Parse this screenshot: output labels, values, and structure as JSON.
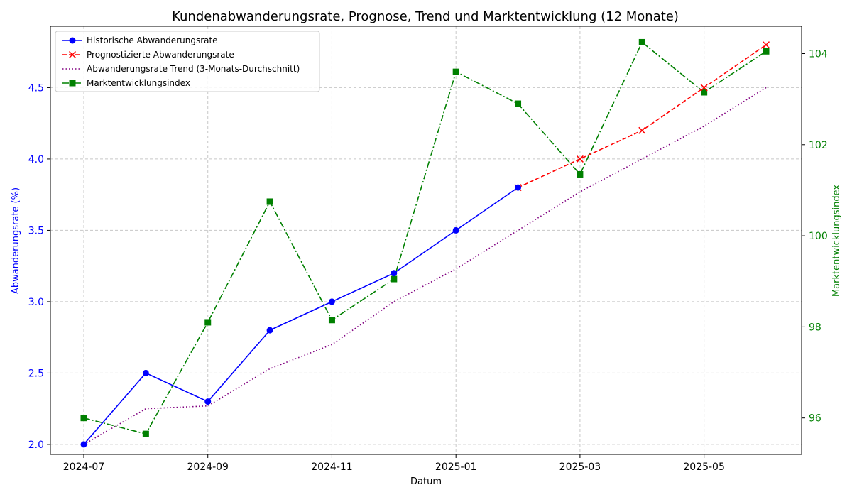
{
  "chart_data": {
    "type": "line",
    "title": "Kundenabwanderungsrate, Prognose, Trend und Marktentwicklung (12 Monate)",
    "xlabel": "Datum",
    "ylabel": "Abwanderungsrate (%)",
    "y2label": "Marktentwicklungsindex",
    "x_ticks": [
      "2024-07",
      "2024-09",
      "2024-11",
      "2025-01",
      "2025-03",
      "2025-05"
    ],
    "y_ticks": [
      "2.0",
      "2.5",
      "3.0",
      "3.5",
      "4.0",
      "4.5"
    ],
    "y2_ticks": [
      "96",
      "98",
      "100",
      "102",
      "104"
    ],
    "ylim": [
      1.93,
      4.93
    ],
    "y2lim": [
      95.2,
      104.6
    ],
    "grid": true,
    "legend_position": "top-left",
    "series": [
      {
        "name": "Historische Abwanderungsrate",
        "axis": "left",
        "color": "#0000ff",
        "marker": "circle",
        "linestyle": "solid",
        "x": [
          "2024-07",
          "2024-08",
          "2024-09",
          "2024-10",
          "2024-11",
          "2024-12",
          "2025-01",
          "2025-02"
        ],
        "values": [
          2.0,
          2.5,
          2.3,
          2.8,
          3.0,
          3.2,
          3.5,
          3.8
        ]
      },
      {
        "name": "Prognostizierte Abwanderungsrate",
        "axis": "left",
        "color": "#ff0000",
        "marker": "x",
        "linestyle": "dashed",
        "x": [
          "2025-02",
          "2025-03",
          "2025-04",
          "2025-05",
          "2025-06"
        ],
        "values": [
          3.8,
          4.0,
          4.2,
          4.5,
          4.8
        ]
      },
      {
        "name": "Abwanderungsrate Trend (3-Monats-Durchschnitt)",
        "axis": "left",
        "color": "#800080",
        "marker": "none",
        "linestyle": "dotted",
        "x": [
          "2024-07",
          "2024-08",
          "2024-09",
          "2024-10",
          "2024-11",
          "2024-12",
          "2025-01",
          "2025-02",
          "2025-03",
          "2025-04",
          "2025-05",
          "2025-06"
        ],
        "values": [
          2.0,
          2.25,
          2.27,
          2.53,
          2.7,
          3.0,
          3.23,
          3.5,
          3.77,
          4.0,
          4.23,
          4.5
        ]
      },
      {
        "name": "Marktentwicklungsindex",
        "axis": "right",
        "color": "#008000",
        "marker": "square",
        "linestyle": "dashdot",
        "x": [
          "2024-07",
          "2024-08",
          "2024-09",
          "2024-10",
          "2024-11",
          "2024-12",
          "2025-01",
          "2025-02",
          "2025-03",
          "2025-04",
          "2025-05",
          "2025-06"
        ],
        "values": [
          96.0,
          95.65,
          98.1,
          100.75,
          98.15,
          99.05,
          103.6,
          102.9,
          101.35,
          104.25,
          103.15,
          104.05
        ]
      }
    ]
  },
  "colors": {
    "left_axis": "#0000ff",
    "right_axis": "#008000",
    "grid": "#c8c8c8"
  }
}
